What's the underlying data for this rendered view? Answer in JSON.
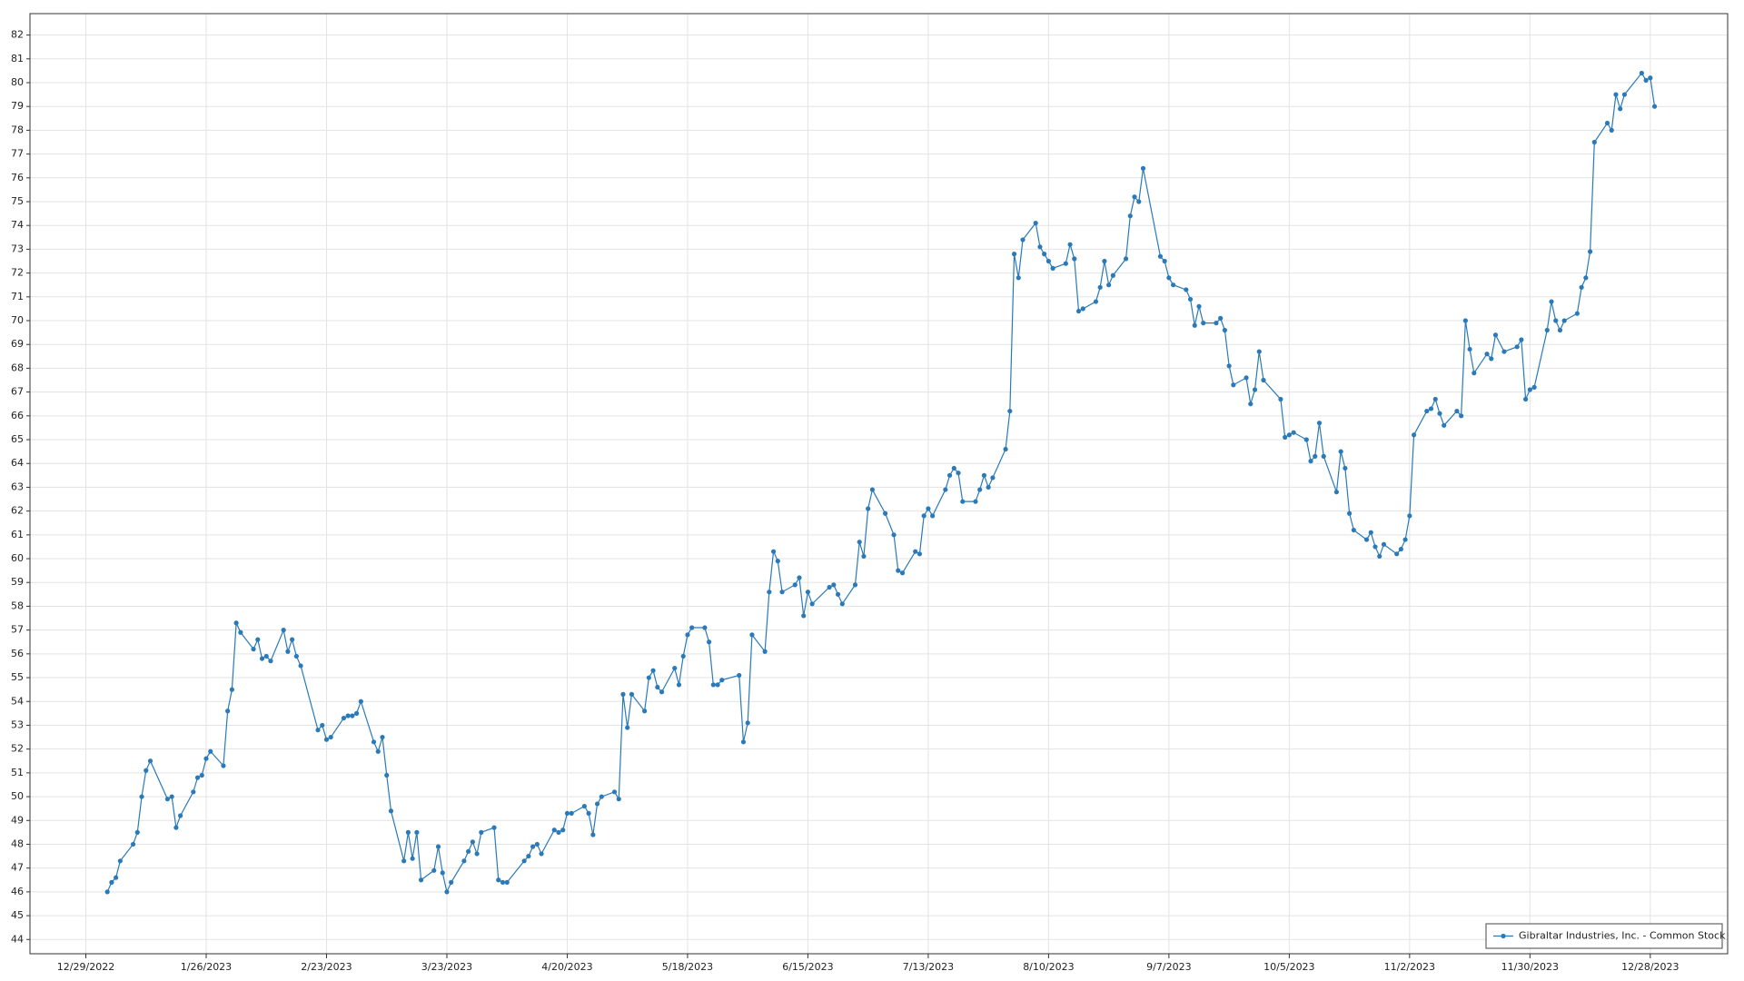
{
  "chart_data": {
    "type": "line",
    "x": [
      "1/3/2023",
      "1/4/2023",
      "1/5/2023",
      "1/6/2023",
      "1/9/2023",
      "1/10/2023",
      "1/11/2023",
      "1/12/2023",
      "1/13/2023",
      "1/17/2023",
      "1/18/2023",
      "1/19/2023",
      "1/20/2023",
      "1/23/2023",
      "1/24/2023",
      "1/25/2023",
      "1/26/2023",
      "1/27/2023",
      "1/30/2023",
      "1/31/2023",
      "2/1/2023",
      "2/2/2023",
      "2/3/2023",
      "2/6/2023",
      "2/7/2023",
      "2/8/2023",
      "2/9/2023",
      "2/10/2023",
      "2/13/2023",
      "2/14/2023",
      "2/15/2023",
      "2/16/2023",
      "2/17/2023",
      "2/21/2023",
      "2/22/2023",
      "2/23/2023",
      "2/24/2023",
      "2/27/2023",
      "2/28/2023",
      "3/1/2023",
      "3/2/2023",
      "3/3/2023",
      "3/6/2023",
      "3/7/2023",
      "3/8/2023",
      "3/9/2023",
      "3/10/2023",
      "3/13/2023",
      "3/14/2023",
      "3/15/2023",
      "3/16/2023",
      "3/17/2023",
      "3/20/2023",
      "3/21/2023",
      "3/22/2023",
      "3/23/2023",
      "3/24/2023",
      "3/27/2023",
      "3/28/2023",
      "3/29/2023",
      "3/30/2023",
      "3/31/2023",
      "4/3/2023",
      "4/4/2023",
      "4/5/2023",
      "4/6/2023",
      "4/10/2023",
      "4/11/2023",
      "4/12/2023",
      "4/13/2023",
      "4/14/2023",
      "4/17/2023",
      "4/18/2023",
      "4/19/2023",
      "4/20/2023",
      "4/21/2023",
      "4/24/2023",
      "4/25/2023",
      "4/26/2023",
      "4/27/2023",
      "4/28/2023",
      "5/1/2023",
      "5/2/2023",
      "5/3/2023",
      "5/4/2023",
      "5/5/2023",
      "5/8/2023",
      "5/9/2023",
      "5/10/2023",
      "5/11/2023",
      "5/12/2023",
      "5/15/2023",
      "5/16/2023",
      "5/17/2023",
      "5/18/2023",
      "5/19/2023",
      "5/22/2023",
      "5/23/2023",
      "5/24/2023",
      "5/25/2023",
      "5/26/2023",
      "5/30/2023",
      "5/31/2023",
      "6/1/2023",
      "6/2/2023",
      "6/5/2023",
      "6/6/2023",
      "6/7/2023",
      "6/8/2023",
      "6/9/2023",
      "6/12/2023",
      "6/13/2023",
      "6/14/2023",
      "6/15/2023",
      "6/16/2023",
      "6/20/2023",
      "6/21/2023",
      "6/22/2023",
      "6/23/2023",
      "6/26/2023",
      "6/27/2023",
      "6/28/2023",
      "6/29/2023",
      "6/30/2023",
      "7/3/2023",
      "7/5/2023",
      "7/6/2023",
      "7/7/2023",
      "7/10/2023",
      "7/11/2023",
      "7/12/2023",
      "7/13/2023",
      "7/14/2023",
      "7/17/2023",
      "7/18/2023",
      "7/19/2023",
      "7/20/2023",
      "7/21/2023",
      "7/24/2023",
      "7/25/2023",
      "7/26/2023",
      "7/27/2023",
      "7/28/2023",
      "7/31/2023",
      "8/1/2023",
      "8/2/2023",
      "8/3/2023",
      "8/4/2023",
      "8/7/2023",
      "8/8/2023",
      "8/9/2023",
      "8/10/2023",
      "8/11/2023",
      "8/14/2023",
      "8/15/2023",
      "8/16/2023",
      "8/17/2023",
      "8/18/2023",
      "8/21/2023",
      "8/22/2023",
      "8/23/2023",
      "8/24/2023",
      "8/25/2023",
      "8/28/2023",
      "8/29/2023",
      "8/30/2023",
      "8/31/2023",
      "9/1/2023",
      "9/5/2023",
      "9/6/2023",
      "9/7/2023",
      "9/8/2023",
      "9/11/2023",
      "9/12/2023",
      "9/13/2023",
      "9/14/2023",
      "9/15/2023",
      "9/18/2023",
      "9/19/2023",
      "9/20/2023",
      "9/21/2023",
      "9/22/2023",
      "9/25/2023",
      "9/26/2023",
      "9/27/2023",
      "9/28/2023",
      "9/29/2023",
      "10/3/2023",
      "10/4/2023",
      "10/5/2023",
      "10/6/2023",
      "10/9/2023",
      "10/10/2023",
      "10/11/2023",
      "10/12/2023",
      "10/13/2023",
      "10/16/2023",
      "10/17/2023",
      "10/18/2023",
      "10/19/2023",
      "10/20/2023",
      "10/23/2023",
      "10/24/2023",
      "10/25/2023",
      "10/26/2023",
      "10/27/2023",
      "10/30/2023",
      "10/31/2023",
      "11/1/2023",
      "11/2/2023",
      "11/3/2023",
      "11/6/2023",
      "11/7/2023",
      "11/8/2023",
      "11/9/2023",
      "11/10/2023",
      "11/13/2023",
      "11/14/2023",
      "11/15/2023",
      "11/16/2023",
      "11/17/2023",
      "11/20/2023",
      "11/21/2023",
      "11/22/2023",
      "11/24/2023",
      "11/27/2023",
      "11/28/2023",
      "11/29/2023",
      "11/30/2023",
      "12/1/2023",
      "12/4/2023",
      "12/5/2023",
      "12/6/2023",
      "12/7/2023",
      "12/8/2023",
      "12/11/2023",
      "12/12/2023",
      "12/13/2023",
      "12/14/2023",
      "12/15/2023",
      "12/18/2023",
      "12/19/2023",
      "12/20/2023",
      "12/21/2023",
      "12/22/2023",
      "12/26/2023",
      "12/27/2023",
      "12/28/2023",
      "12/29/2023"
    ],
    "series": [
      {
        "name": "Gibraltar Industries, Inc. - Common Stock",
        "color": "#2a7ab9",
        "values": [
          46.0,
          46.4,
          46.6,
          47.3,
          48.0,
          48.5,
          50.0,
          51.1,
          51.5,
          49.9,
          50.0,
          48.7,
          49.2,
          50.2,
          50.8,
          50.9,
          51.6,
          51.9,
          51.3,
          53.6,
          54.5,
          57.3,
          56.9,
          56.2,
          56.6,
          55.8,
          55.9,
          55.7,
          57.0,
          56.1,
          56.6,
          55.9,
          55.5,
          52.8,
          53.0,
          52.4,
          52.5,
          53.3,
          53.4,
          53.4,
          53.5,
          54.0,
          52.3,
          51.9,
          52.5,
          50.9,
          49.4,
          47.3,
          48.5,
          47.4,
          48.5,
          46.5,
          46.9,
          47.9,
          46.8,
          46.0,
          46.4,
          47.3,
          47.7,
          48.1,
          47.6,
          48.5,
          48.7,
          46.5,
          46.4,
          46.4,
          47.3,
          47.5,
          47.9,
          48.0,
          47.6,
          48.6,
          48.5,
          48.6,
          49.3,
          49.3,
          49.6,
          49.3,
          48.4,
          49.7,
          50.0,
          50.2,
          49.9,
          54.3,
          52.9,
          54.3,
          53.6,
          55.0,
          55.3,
          54.6,
          54.4,
          55.4,
          54.7,
          55.9,
          56.8,
          57.1,
          57.1,
          56.5,
          54.7,
          54.7,
          54.9,
          55.1,
          52.3,
          53.1,
          56.8,
          56.1,
          58.6,
          60.3,
          59.9,
          58.6,
          58.9,
          59.2,
          57.6,
          58.6,
          58.1,
          58.8,
          58.9,
          58.5,
          58.1,
          58.9,
          60.7,
          60.1,
          62.1,
          62.9,
          61.9,
          61.0,
          59.5,
          59.4,
          60.3,
          60.2,
          61.8,
          62.1,
          61.8,
          62.9,
          63.5,
          63.8,
          63.6,
          62.4,
          62.4,
          62.9,
          63.5,
          63.0,
          63.4,
          64.6,
          66.2,
          72.8,
          71.8,
          73.4,
          74.1,
          73.1,
          72.8,
          72.5,
          72.2,
          72.4,
          73.2,
          72.6,
          70.4,
          70.5,
          70.8,
          71.4,
          72.5,
          71.5,
          71.9,
          72.6,
          74.4,
          75.2,
          75.0,
          76.4,
          72.7,
          72.5,
          71.8,
          71.5,
          71.3,
          70.9,
          69.8,
          70.6,
          69.9,
          69.9,
          70.1,
          69.6,
          68.1,
          67.3,
          67.6,
          66.5,
          67.1,
          68.7,
          67.5,
          66.7,
          65.1,
          65.2,
          65.3,
          65.0,
          64.1,
          64.3,
          65.7,
          64.3,
          62.8,
          64.5,
          63.8,
          61.9,
          61.2,
          60.8,
          61.1,
          60.5,
          60.1,
          60.6,
          60.2,
          60.4,
          60.8,
          61.8,
          65.2,
          66.2,
          66.3,
          66.7,
          66.1,
          65.6,
          66.2,
          66.0,
          70.0,
          68.8,
          67.8,
          68.6,
          68.4,
          69.4,
          68.7,
          68.9,
          69.2,
          66.7,
          67.1,
          67.2,
          69.6,
          70.8,
          70.0,
          69.6,
          70.0,
          70.3,
          71.4,
          71.8,
          72.9,
          77.5,
          78.3,
          78.0,
          79.5,
          78.9,
          79.5,
          80.4,
          80.1,
          80.2,
          79.0
        ]
      }
    ],
    "xlim": [
      "12/16/2022",
      "1/15/2024"
    ],
    "xticks": [
      "12/29/2022",
      "1/26/2023",
      "2/23/2023",
      "3/23/2023",
      "4/20/2023",
      "5/18/2023",
      "6/15/2023",
      "7/13/2023",
      "8/10/2023",
      "9/7/2023",
      "10/5/2023",
      "11/2/2023",
      "11/30/2023",
      "12/28/2023"
    ],
    "ylim": [
      43.4,
      82.9
    ],
    "yticks": [
      44,
      45,
      46,
      47,
      48,
      49,
      50,
      51,
      52,
      53,
      54,
      55,
      56,
      57,
      58,
      59,
      60,
      61,
      62,
      63,
      64,
      65,
      66,
      67,
      68,
      69,
      70,
      71,
      72,
      73,
      74,
      75,
      76,
      77,
      78,
      79,
      80,
      81,
      82
    ],
    "grid": true,
    "legend": "lower right"
  }
}
